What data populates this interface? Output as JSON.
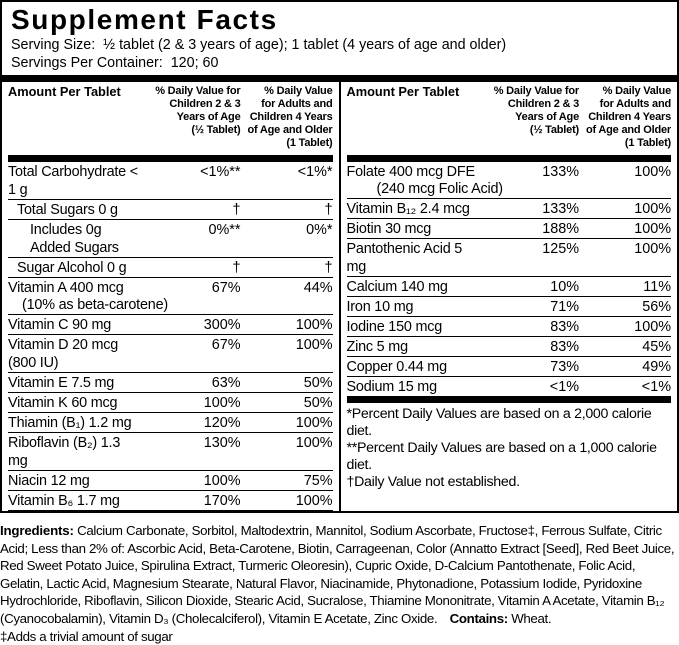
{
  "header": {
    "title": "Supplement Facts",
    "serving_size": "Serving Size:  ½ tablet (2 & 3 years of age); 1 tablet (4 years of age and older)",
    "servings_per_container": "Servings Per Container:  120; 60"
  },
  "column_header": {
    "amount": "Amount Per Tablet",
    "dv_children": "% Daily Value for\nChildren 2 & 3\nYears of Age\n(½ Tablet)",
    "dv_adults": "% Daily Value\nfor Adults and\nChildren 4 Years\nof Age and Older\n(1 Tablet)"
  },
  "tables": {
    "left": {
      "rows": [
        {
          "name": "Total Carbohydrate < 1 g",
          "dv_children": "<1%**",
          "dv_adults": "<1%*"
        },
        {
          "name": "Total Sugars 0 g",
          "dv_children": "†",
          "dv_adults": "†"
        },
        {
          "name": "Includes 0g Added Sugars",
          "dv_children": "0%**",
          "dv_adults": "0%*"
        },
        {
          "name": "Sugar Alcohol 0 g",
          "dv_children": "†",
          "dv_adults": "†"
        },
        {
          "name": "Vitamin A 400 mcg",
          "name2": "(10% as beta-carotene)",
          "dv_children": "67%",
          "dv_adults": "44%"
        },
        {
          "name": "Vitamin C 90 mg",
          "dv_children": "300%",
          "dv_adults": "100%"
        },
        {
          "name": "Vitamin D 20 mcg (800 IU)",
          "dv_children": "67%",
          "dv_adults": "100%"
        },
        {
          "name": "Vitamin E 7.5 mg",
          "dv_children": "63%",
          "dv_adults": "50%"
        },
        {
          "name": "Vitamin K 60 mcg",
          "dv_children": "100%",
          "dv_adults": "50%"
        },
        {
          "name": "Thiamin (B₁) 1.2 mg",
          "dv_children": "120%",
          "dv_adults": "100%"
        },
        {
          "name": "Riboflavin (B₂) 1.3 mg",
          "dv_children": "130%",
          "dv_adults": "100%"
        },
        {
          "name": "Niacin 12 mg",
          "dv_children": "100%",
          "dv_adults": "75%"
        },
        {
          "name": "Vitamin B₆ 1.7 mg",
          "dv_children": "170%",
          "dv_adults": "100%"
        }
      ]
    },
    "right": {
      "rows": [
        {
          "name": "Folate 400 mcg DFE",
          "name2": "(240 mcg Folic Acid)",
          "dv_children": "133%",
          "dv_adults": "100%"
        },
        {
          "name": "Vitamin B₁₂ 2.4 mcg",
          "dv_children": "133%",
          "dv_adults": "100%"
        },
        {
          "name": "Biotin 30 mcg",
          "dv_children": "188%",
          "dv_adults": "100%"
        },
        {
          "name": "Pantothenic Acid 5 mg",
          "dv_children": "125%",
          "dv_adults": "100%"
        },
        {
          "name": "Calcium 140 mg",
          "dv_children": "10%",
          "dv_adults": "11%"
        },
        {
          "name": "Iron 10 mg",
          "dv_children": "71%",
          "dv_adults": "56%"
        },
        {
          "name": "Iodine 150 mcg",
          "dv_children": "83%",
          "dv_adults": "100%"
        },
        {
          "name": "Zinc 5 mg",
          "dv_children": "83%",
          "dv_adults": "45%"
        },
        {
          "name": "Copper 0.44 mg",
          "dv_children": "73%",
          "dv_adults": "49%"
        },
        {
          "name": "Sodium 15 mg",
          "dv_children": "<1%",
          "dv_adults": "<1%"
        }
      ]
    }
  },
  "footnotes": [
    "*Percent Daily Values are based on a 2,000 calorie diet.",
    "**Percent Daily Values are based on a 1,000 calorie diet.",
    "†Daily Value not established."
  ],
  "ingredients": {
    "label": "Ingredients:",
    "text": "Calcium Carbonate, Sorbitol, Maltodextrin, Mannitol, Sodium Ascorbate, Fructose‡, Ferrous Sulfate, Citric Acid; Less than 2% of: Ascorbic Acid, Beta-Carotene, Biotin, Carrageenan, Color (Annatto Extract [Seed], Red Beet Juice, Red Sweet Potato Juice, Spirulina Extract, Turmeric Oleoresin), Cupric Oxide, D-Calcium Pantothenate, Folic Acid, Gelatin, Lactic Acid, Magnesium Stearate, Natural Flavor, Niacinamide, Phytonadione, Potassium Iodide, Pyridoxine Hydrochloride, Riboflavin, Silicon Dioxide, Stearic Acid, Sucralose, Thiamine Mononitrate, Vitamin A Acetate, Vitamin B₁₂ (Cyanocobalamin), Vitamin D₃ (Cholecalciferol), Vitamin E Acetate, Zinc Oxide.",
    "contains_label": "Contains:",
    "contains_value": "Wheat.",
    "sugar_note": "‡Adds a trivial amount of sugar"
  },
  "colors": {
    "ink": "#000000",
    "background": "#ffffff"
  }
}
